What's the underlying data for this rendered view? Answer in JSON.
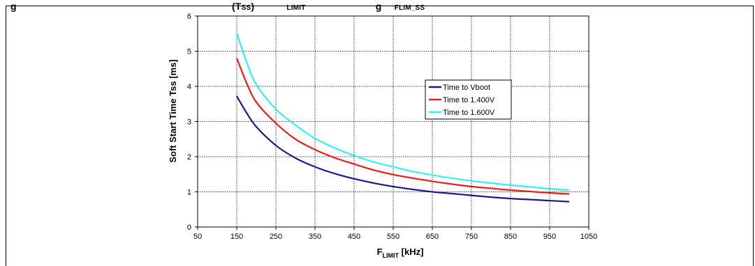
{
  "figure": {
    "cut_title_fragments": [
      "g",
      "(T",
      "SS",
      ")",
      "LIMIT",
      "g",
      "FLIM_SS"
    ]
  },
  "chart_data": {
    "type": "line",
    "xlabel": "F",
    "xlabel_sub": "LIMIT",
    "xlabel_unit": " [kHz]",
    "ylabel": "Soft Start Time Tss [ms]",
    "xlim": [
      50,
      1050
    ],
    "ylim": [
      0,
      6
    ],
    "xticks": [
      50,
      150,
      250,
      350,
      450,
      550,
      650,
      750,
      850,
      950,
      1050
    ],
    "yticks": [
      0,
      1,
      2,
      3,
      4,
      5,
      6
    ],
    "grid": true,
    "grid_style": "dotted",
    "legend_position": "center-right",
    "series": [
      {
        "name": "Time to Vboot",
        "color": "#1a1a8c",
        "x": [
          150,
          175,
          200,
          250,
          300,
          350,
          400,
          450,
          500,
          550,
          600,
          650,
          700,
          750,
          800,
          850,
          900,
          950,
          1000
        ],
        "y": [
          3.72,
          3.25,
          2.85,
          2.32,
          1.96,
          1.71,
          1.52,
          1.37,
          1.25,
          1.15,
          1.07,
          1.0,
          0.95,
          0.9,
          0.85,
          0.81,
          0.78,
          0.75,
          0.72
        ]
      },
      {
        "name": "Time to 1.400V",
        "color": "#ee1c1c",
        "x": [
          150,
          175,
          200,
          250,
          300,
          350,
          400,
          450,
          500,
          550,
          600,
          650,
          700,
          750,
          800,
          850,
          900,
          950,
          1000
        ],
        "y": [
          4.8,
          4.1,
          3.55,
          2.95,
          2.5,
          2.2,
          1.97,
          1.79,
          1.62,
          1.49,
          1.39,
          1.3,
          1.22,
          1.15,
          1.1,
          1.05,
          1.01,
          0.97,
          0.94
        ]
      },
      {
        "name": "Time to 1.600V",
        "color": "#33f0f0",
        "x": [
          150,
          175,
          200,
          250,
          300,
          350,
          400,
          450,
          500,
          550,
          600,
          650,
          700,
          750,
          800,
          850,
          900,
          950,
          1000
        ],
        "y": [
          5.52,
          4.7,
          4.05,
          3.35,
          2.9,
          2.52,
          2.25,
          2.03,
          1.85,
          1.71,
          1.58,
          1.48,
          1.39,
          1.31,
          1.25,
          1.19,
          1.14,
          1.09,
          1.05
        ]
      }
    ]
  }
}
